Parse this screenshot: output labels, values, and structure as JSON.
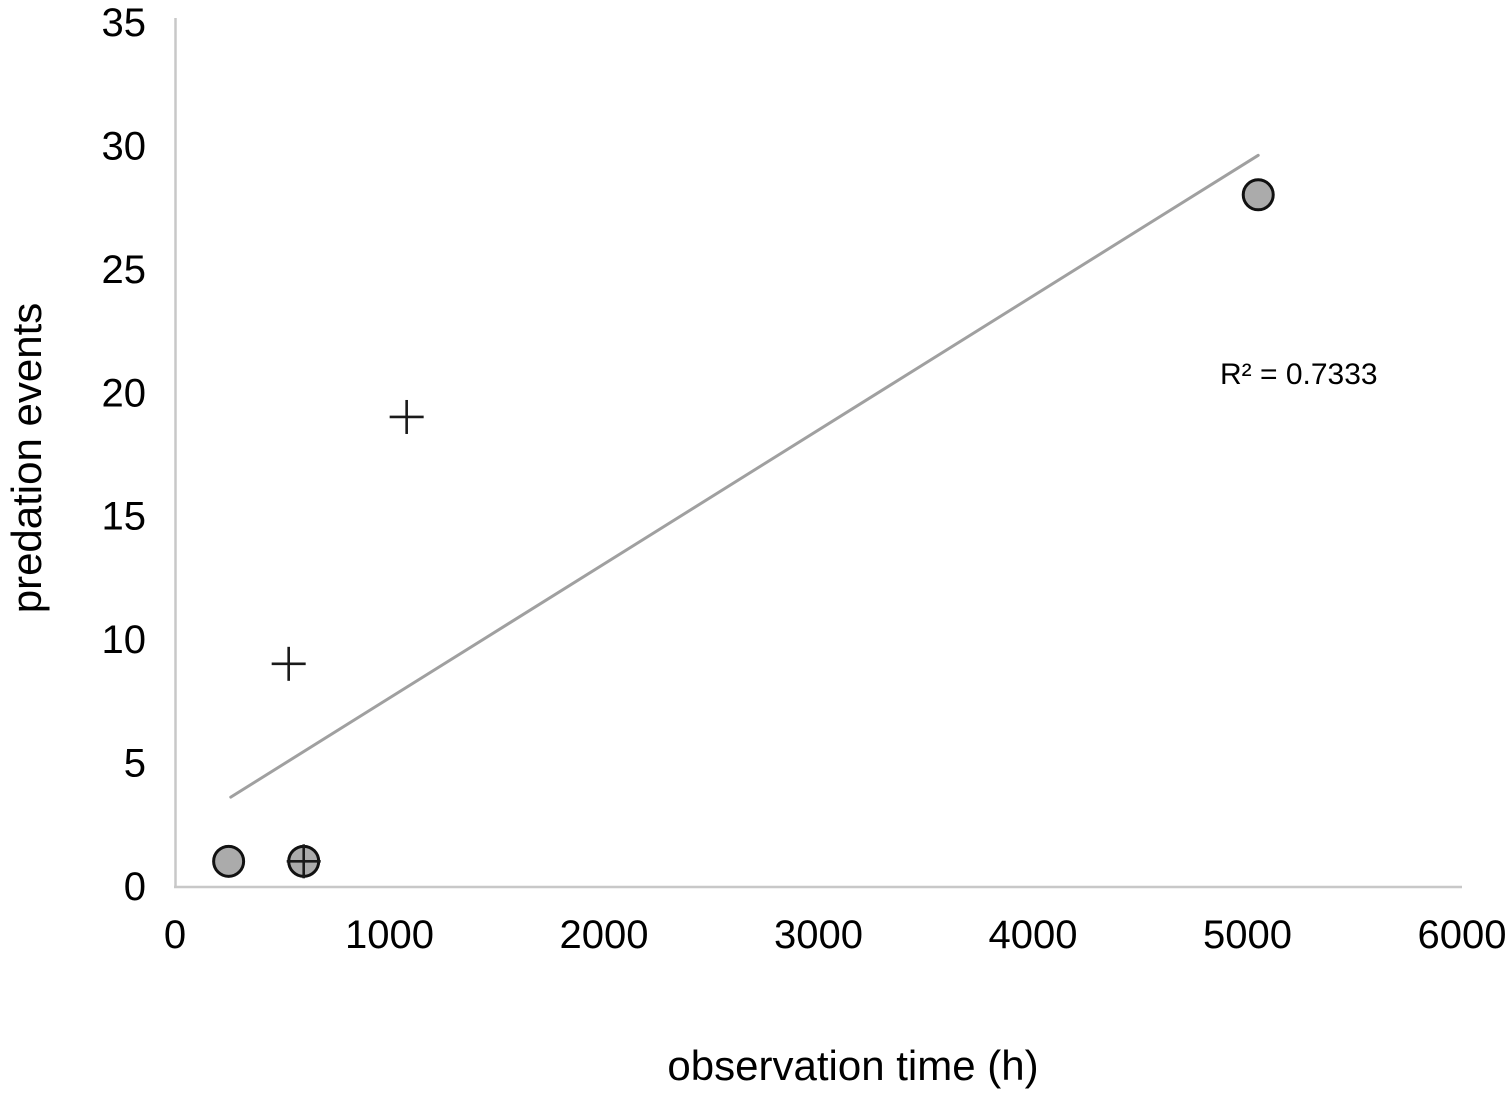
{
  "chart_data": {
    "type": "scatter",
    "title": "",
    "xlabel": "observation time (h)",
    "ylabel": "predation events",
    "xlim": [
      0,
      6000
    ],
    "ylim": [
      0,
      35
    ],
    "x_ticks": [
      0,
      1000,
      2000,
      3000,
      4000,
      5000,
      6000
    ],
    "y_ticks": [
      0,
      5,
      10,
      15,
      20,
      25,
      30,
      35
    ],
    "grid": false,
    "legend": "none",
    "series": [
      {
        "name": "circle-markers",
        "marker": "circle",
        "fill": "#ababab",
        "stroke": "#111111",
        "points": [
          [
            250,
            1
          ],
          [
            600,
            1
          ],
          [
            5050,
            28
          ]
        ]
      },
      {
        "name": "plus-markers",
        "marker": "plus",
        "stroke": "#1a1a1a",
        "points": [
          [
            530,
            9
          ],
          [
            600,
            1
          ],
          [
            1080,
            19
          ]
        ]
      }
    ],
    "trendline": {
      "x_start": 260,
      "y_start": 3.6,
      "x_end": 5050,
      "y_end": 29.6,
      "color": "#a0a0a0"
    },
    "annotation": {
      "text": "R² = 0.7333"
    }
  },
  "colors": {
    "axis_line": "#c8c8c8",
    "text": "#000000",
    "background": "#ffffff"
  }
}
